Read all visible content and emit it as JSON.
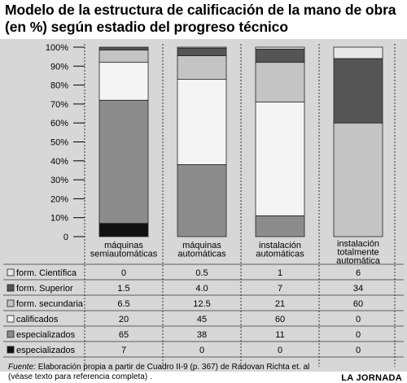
{
  "header": {
    "title": "Modelo de la estructura de calificación de la mano de obra (en %) según estadio del progreso técnico"
  },
  "footer": {
    "source_label": "Fuente:",
    "source_text": " Elaboración propia a partir de Cuadro II-9 (p. 367) de Radovan Richta et. al",
    "source_note": "(véase texto para referencia completa) .",
    "brand": "LA JORNADA"
  },
  "chart_data": {
    "type": "bar",
    "stacked": true,
    "title": "Modelo de la estructura de calificación de la mano de obra (en %) según estadio del progreso técnico",
    "xlabel": "",
    "ylabel": "",
    "ylim": [
      0,
      100
    ],
    "yticks": [
      "0",
      "10%",
      "20%",
      "30%",
      "40%",
      "50%",
      "60%",
      "70%",
      "80%",
      "90%",
      "100%"
    ],
    "grid": "vertical-dashed",
    "categories": [
      [
        "máquinas",
        "semiautomáticas"
      ],
      [
        "máquinas",
        "automáticas"
      ],
      [
        "instalación",
        "automáticas"
      ],
      [
        "instalación",
        "totalmente",
        "automática"
      ]
    ],
    "series": [
      {
        "name": "especializados",
        "color": "#111111",
        "values": [
          7,
          0,
          0,
          0
        ],
        "labels": [
          "7",
          "0",
          "0",
          "0"
        ]
      },
      {
        "name": "especializados",
        "color": "#8c8c8c",
        "values": [
          65,
          38,
          11,
          0
        ],
        "labels": [
          "65",
          "38",
          "11",
          "0"
        ]
      },
      {
        "name": "calificados",
        "color": "#f4f4f4",
        "values": [
          20,
          45,
          60,
          0
        ],
        "labels": [
          "20",
          "45",
          "60",
          "0"
        ]
      },
      {
        "name": "form. secundaria",
        "color": "#c4c4c4",
        "values": [
          6.5,
          12.5,
          21,
          60
        ],
        "labels": [
          "6.5",
          "12.5",
          "21",
          "60"
        ]
      },
      {
        "name": "form. Superior",
        "color": "#555555",
        "values": [
          1.5,
          4.0,
          7,
          34
        ],
        "labels": [
          "1.5",
          "4.0",
          "7",
          "34"
        ]
      },
      {
        "name": "form. Científica",
        "color": "#e8e8e8",
        "values": [
          0,
          0.5,
          1,
          6
        ],
        "labels": [
          "0",
          "0.5",
          "1",
          "6"
        ]
      }
    ],
    "table_row_order": [
      5,
      4,
      3,
      2,
      1,
      0
    ]
  }
}
